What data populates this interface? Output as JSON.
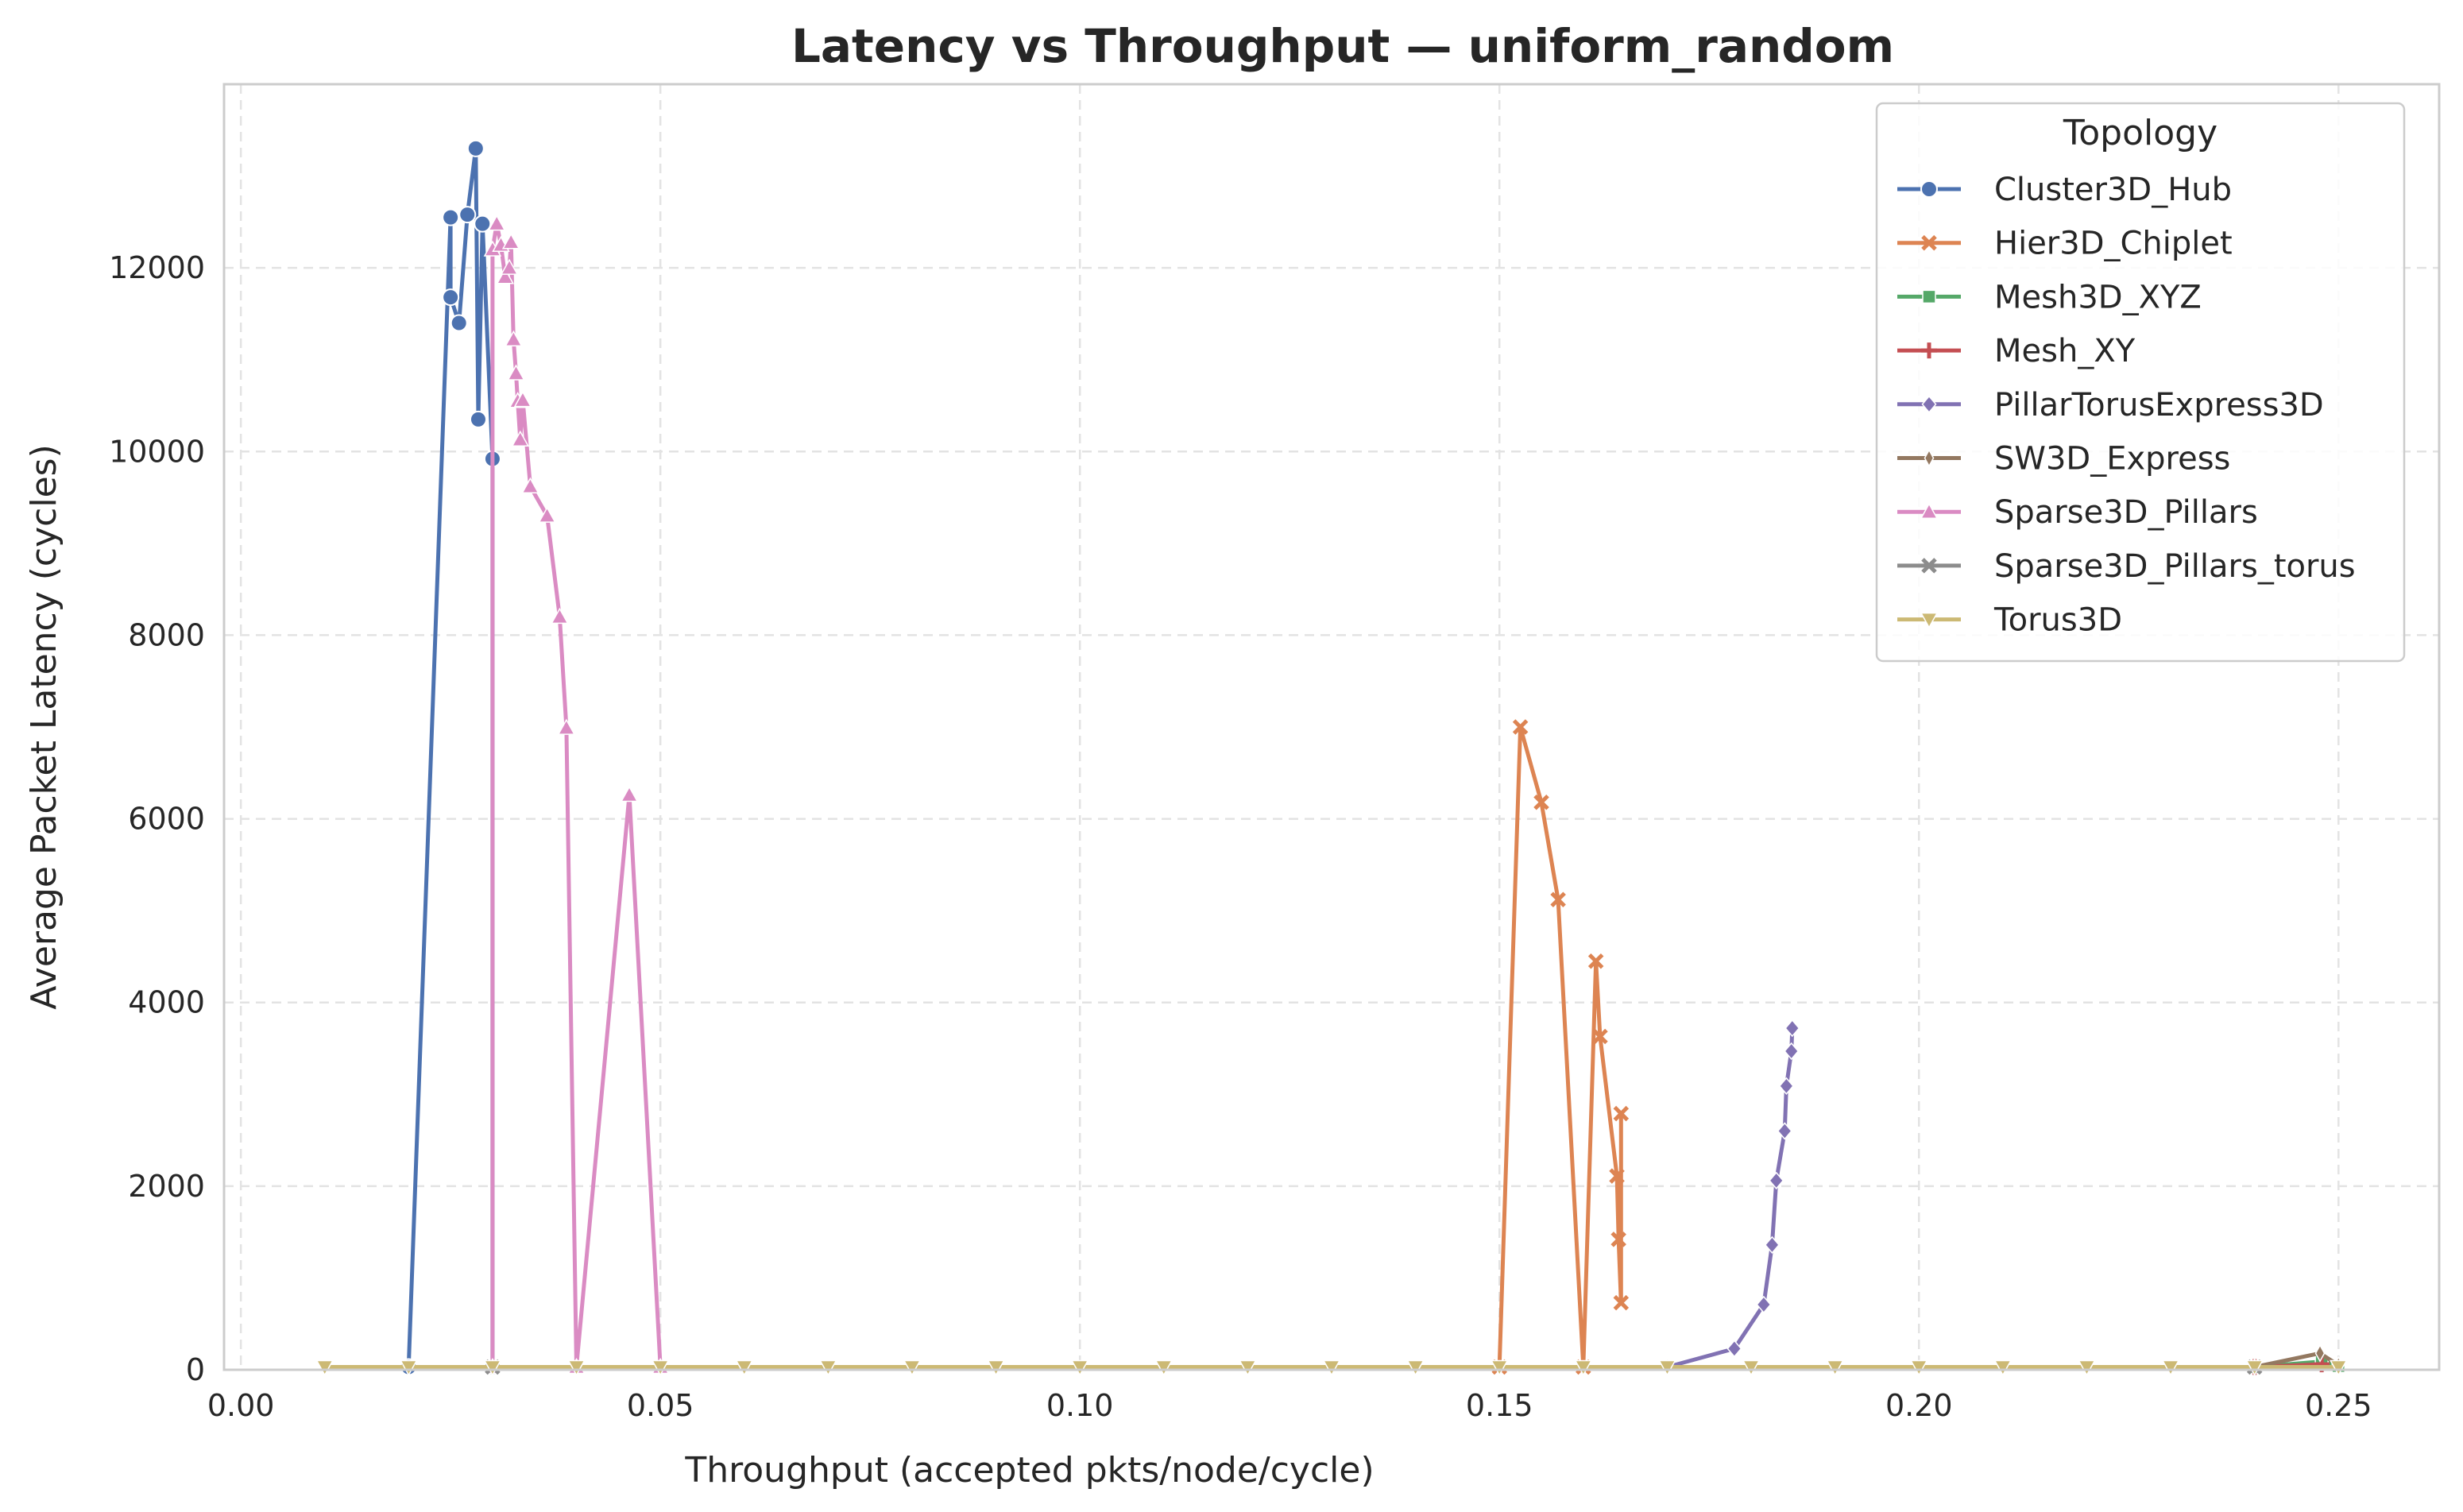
{
  "chart_data": {
    "type": "line",
    "title": "Latency vs Throughput — uniform_random",
    "xlabel": "Throughput (accepted pkts/node/cycle)",
    "ylabel": "Average Packet Latency (cycles)",
    "xlim": [
      -0.002,
      0.262
    ],
    "ylim": [
      0,
      14000
    ],
    "xticks": [
      0.0,
      0.05,
      0.1,
      0.15,
      0.2,
      0.25
    ],
    "xtick_labels": [
      "0.00",
      "0.05",
      "0.10",
      "0.15",
      "0.20",
      "0.25"
    ],
    "yticks": [
      0,
      2000,
      4000,
      6000,
      8000,
      10000,
      12000
    ],
    "ytick_labels": [
      "0",
      "2000",
      "4000",
      "6000",
      "8000",
      "10000",
      "12000"
    ],
    "grid": true,
    "legend": {
      "title": "Topology",
      "placement": "top-right"
    },
    "series": [
      {
        "name": "Cluster3D_Hub",
        "color": "#4c72b0",
        "marker": "circle",
        "x": [
          0.02,
          0.025,
          0.025,
          0.026,
          0.027,
          0.028,
          0.0283,
          0.0288,
          0.03,
          0.03,
          0.03
        ],
        "y": [
          30,
          12550,
          11680,
          11400,
          12580,
          13300,
          10350,
          12480,
          9920,
          30,
          30
        ]
      },
      {
        "name": "Hier3D_Chiplet",
        "color": "#dd8452",
        "marker": "x",
        "x": [
          0.15,
          0.1525,
          0.155,
          0.157,
          0.16,
          0.1615,
          0.162,
          0.164,
          0.1642,
          0.1645,
          0.1645
        ],
        "y": [
          30,
          7000,
          6180,
          5120,
          30,
          4450,
          3630,
          2110,
          1420,
          730,
          2790
        ]
      },
      {
        "name": "Mesh3D_XYZ",
        "color": "#55a868",
        "marker": "square",
        "x": [
          0.24,
          0.248,
          0.25
        ],
        "y": [
          30,
          90,
          40
        ]
      },
      {
        "name": "Mesh_XY",
        "color": "#c44e52",
        "marker": "plus",
        "x": [
          0.24,
          0.248
        ],
        "y": [
          30,
          60
        ]
      },
      {
        "name": "PillarTorusExpress3D",
        "color": "#8172b3",
        "marker": "diamond",
        "x": [
          0.17,
          0.178,
          0.1815,
          0.1825,
          0.183,
          0.184,
          0.1842,
          0.1848,
          0.1849
        ],
        "y": [
          30,
          230,
          710,
          1360,
          2060,
          2600,
          3090,
          3470,
          3720
        ]
      },
      {
        "name": "SW3D_Express",
        "color": "#937860",
        "marker": "thin-diamond",
        "x": [
          0.24,
          0.2478,
          0.25
        ],
        "y": [
          30,
          180,
          50
        ]
      },
      {
        "name": "Sparse3D_Pillars",
        "color": "#da8bc3",
        "marker": "triangle-up",
        "x": [
          0.03,
          0.03,
          0.0305,
          0.031,
          0.0315,
          0.032,
          0.0322,
          0.0325,
          0.0328,
          0.033,
          0.0333,
          0.0336,
          0.0345,
          0.0365,
          0.038,
          0.0388,
          0.04,
          0.0463,
          0.05
        ],
        "y": [
          30,
          12200,
          12480,
          12250,
          11900,
          12000,
          12280,
          11220,
          10850,
          10550,
          10130,
          10560,
          9620,
          9300,
          8200,
          6990,
          30,
          6260,
          30
        ]
      },
      {
        "name": "Sparse3D_Pillars_torus",
        "color": "#8c8c8c",
        "marker": "x",
        "x": [
          0.03,
          0.24
        ],
        "y": [
          30,
          30
        ]
      },
      {
        "name": "Torus3D",
        "color": "#ccb974",
        "marker": "triangle-down",
        "x": [
          0.01,
          0.02,
          0.03,
          0.04,
          0.05,
          0.06,
          0.07,
          0.08,
          0.09,
          0.1,
          0.11,
          0.12,
          0.13,
          0.14,
          0.15,
          0.16,
          0.17,
          0.18,
          0.19,
          0.2,
          0.21,
          0.22,
          0.23,
          0.24,
          0.25
        ],
        "y": [
          30,
          30,
          30,
          30,
          30,
          30,
          30,
          30,
          30,
          30,
          30,
          30,
          30,
          30,
          30,
          30,
          30,
          30,
          30,
          30,
          30,
          30,
          30,
          30,
          30
        ]
      }
    ]
  }
}
